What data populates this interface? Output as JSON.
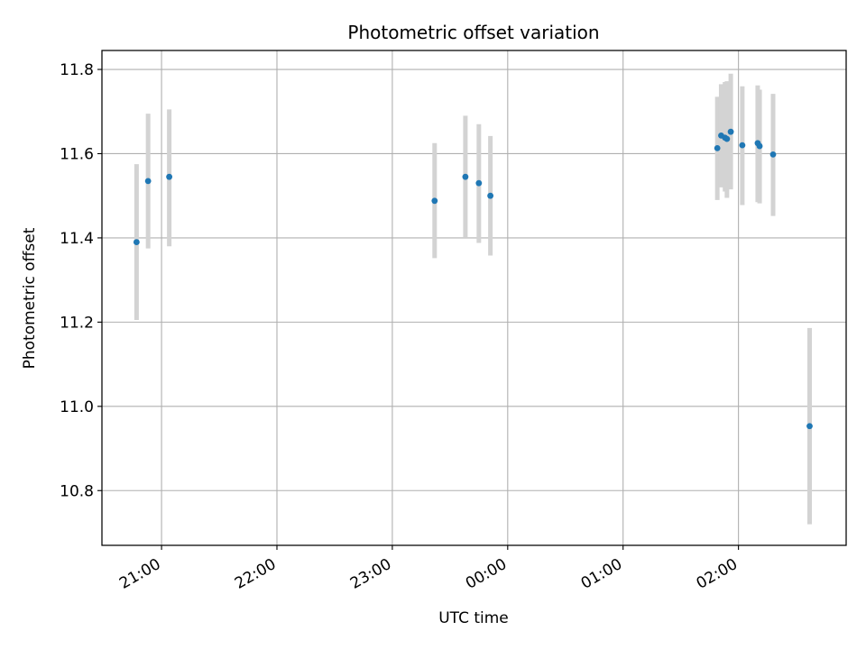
{
  "chart_data": {
    "type": "scatter",
    "title": "Photometric offset variation",
    "xlabel": "UTC time",
    "ylabel": "Photometric offset",
    "x_axis_type": "time",
    "xlim": [
      "20:29",
      "02:56"
    ],
    "ylim": [
      10.67,
      11.845
    ],
    "x_ticks": [
      "21:00",
      "22:00",
      "23:00",
      "00:00",
      "01:00",
      "02:00"
    ],
    "y_ticks": [
      10.8,
      11.0,
      11.2,
      11.4,
      11.6,
      11.8
    ],
    "y_tick_labels": [
      "10.8",
      "11.0",
      "11.2",
      "11.4",
      "11.6",
      "11.8"
    ],
    "grid": true,
    "colors": {
      "points": "#1f77b4",
      "errorbars": "#d3d3d3",
      "grid": "#b0b0b0"
    },
    "series": [
      {
        "points": [
          {
            "x": "20:47",
            "y": 11.39,
            "ylow": 11.205,
            "yhigh": 11.575
          },
          {
            "x": "20:53",
            "y": 11.535,
            "ylow": 11.375,
            "yhigh": 11.695
          },
          {
            "x": "21:04",
            "y": 11.545,
            "ylow": 11.38,
            "yhigh": 11.705
          },
          {
            "x": "23:22",
            "y": 11.488,
            "ylow": 11.352,
            "yhigh": 11.625
          },
          {
            "x": "23:38",
            "y": 11.545,
            "ylow": 11.4,
            "yhigh": 11.69
          },
          {
            "x": "23:45",
            "y": 11.53,
            "ylow": 11.388,
            "yhigh": 11.67
          },
          {
            "x": "23:51",
            "y": 11.5,
            "ylow": 11.358,
            "yhigh": 11.642
          },
          {
            "x": "01:49",
            "y": 11.613,
            "ylow": 11.49,
            "yhigh": 11.735
          },
          {
            "x": "01:51",
            "y": 11.643,
            "ylow": 11.52,
            "yhigh": 11.765
          },
          {
            "x": "01:53",
            "y": 11.638,
            "ylow": 11.51,
            "yhigh": 11.77
          },
          {
            "x": "01:54",
            "y": 11.635,
            "ylow": 11.495,
            "yhigh": 11.772
          },
          {
            "x": "01:56",
            "y": 11.652,
            "ylow": 11.515,
            "yhigh": 11.79
          },
          {
            "x": "02:02",
            "y": 11.62,
            "ylow": 11.478,
            "yhigh": 11.76
          },
          {
            "x": "02:10",
            "y": 11.625,
            "ylow": 11.485,
            "yhigh": 11.762
          },
          {
            "x": "02:11",
            "y": 11.618,
            "ylow": 11.482,
            "yhigh": 11.752
          },
          {
            "x": "02:18",
            "y": 11.598,
            "ylow": 11.452,
            "yhigh": 11.742
          },
          {
            "x": "02:37",
            "y": 10.953,
            "ylow": 10.72,
            "yhigh": 11.186
          }
        ]
      }
    ]
  }
}
